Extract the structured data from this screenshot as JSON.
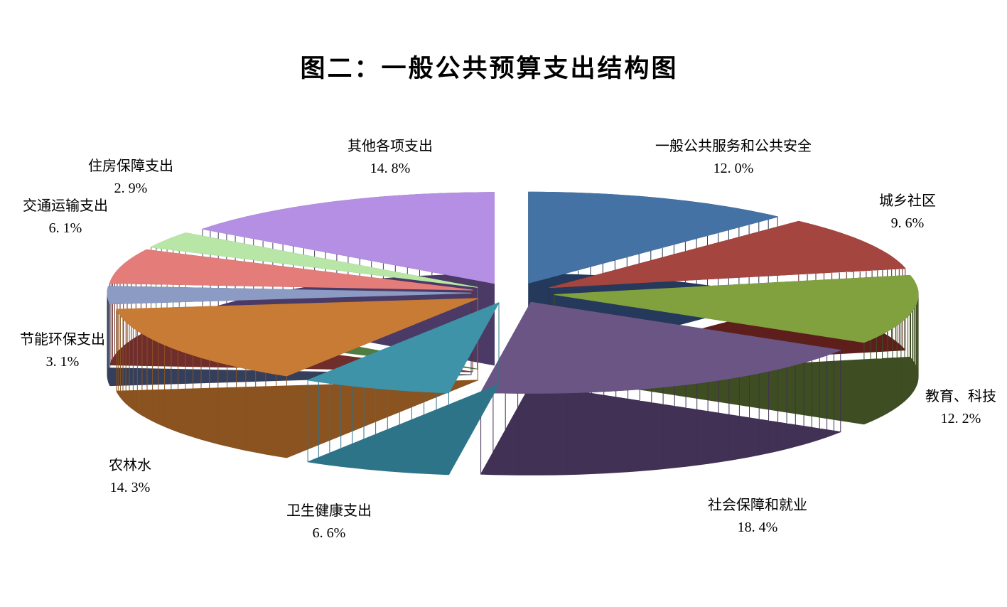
{
  "title": "图二：一般公共预算支出结构图",
  "background_color": "#FFFFFF",
  "chart_data": {
    "type": "pie",
    "title": "图二：一般公共预算支出结构图",
    "style": "3d-exploded",
    "start_angle": "top",
    "direction": "clockwise",
    "legend_position": "none",
    "labels_position": "outside",
    "unit": "%",
    "slices": [
      {
        "label": "一般公共服务和公共安全",
        "value": 12.0,
        "value_label": "12. 0%",
        "color": "#4472A4",
        "side_color": "#24395B"
      },
      {
        "label": "城乡社区",
        "value": 9.6,
        "value_label": "9. 6%",
        "color": "#A4453F",
        "side_color": "#5E1F1C"
      },
      {
        "label": "教育、科技",
        "value": 12.2,
        "value_label": "12. 2%",
        "color": "#81A13F",
        "side_color": "#3E4D22"
      },
      {
        "label": "社会保障和就业",
        "value": 18.4,
        "value_label": "18. 4%",
        "color": "#6B5585",
        "side_color": "#413154"
      },
      {
        "label": "卫生健康支出",
        "value": 6.6,
        "value_label": "6. 6%",
        "color": "#3E93A9",
        "side_color": "#2E7489"
      },
      {
        "label": "农林水",
        "value": 14.3,
        "value_label": "14. 3%",
        "color": "#C87B35",
        "side_color": "#8A531F"
      },
      {
        "label": "节能环保支出",
        "value": 3.1,
        "value_label": "3. 1%",
        "color": "#8B9BC3",
        "side_color": "#343F5B"
      },
      {
        "label": "交通运输支出",
        "value": 6.1,
        "value_label": "6. 1%",
        "color": "#E47D79",
        "side_color": "#6F2D2B"
      },
      {
        "label": "住房保障支出",
        "value": 2.9,
        "value_label": "2. 9%",
        "color": "#B8E6A6",
        "side_color": "#507B41"
      },
      {
        "label": "其他各项支出",
        "value": 14.8,
        "value_label": "14. 8%",
        "color": "#B48FE3",
        "side_color": "#4B3A66"
      }
    ]
  }
}
